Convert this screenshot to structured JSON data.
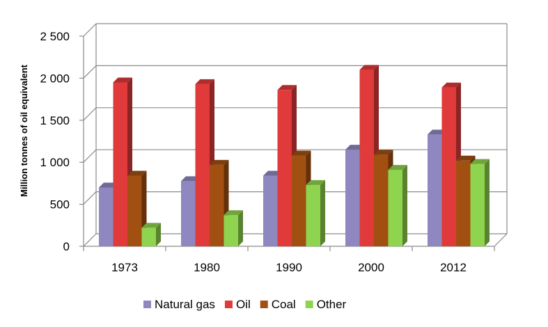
{
  "chart_data": {
    "type": "bar",
    "style": "3d-clustered-column",
    "title": "",
    "xlabel": "",
    "ylabel": "Million tonnes of oil equivalent",
    "categories": [
      "1973",
      "1980",
      "1990",
      "2000",
      "2012"
    ],
    "ylim": [
      0,
      2500
    ],
    "yticks": [
      0,
      500,
      1000,
      1500,
      2000,
      2500
    ],
    "ytick_labels": [
      "0",
      "500",
      "1 000",
      "1 500",
      "2 000",
      "2 500"
    ],
    "grid": true,
    "legend_position": "bottom",
    "series": [
      {
        "name": "Natural gas",
        "values": [
          700,
          775,
          840,
          1150,
          1330
        ],
        "color": "#8f88c0"
      },
      {
        "name": "Oil",
        "values": [
          1950,
          1930,
          1860,
          2100,
          1890
        ],
        "color": "#e03a3a"
      },
      {
        "name": "Coal",
        "values": [
          840,
          970,
          1080,
          1090,
          1020
        ],
        "color": "#a24f12"
      },
      {
        "name": "Other",
        "values": [
          220,
          370,
          730,
          910,
          980
        ],
        "color": "#8fd44e"
      }
    ]
  }
}
